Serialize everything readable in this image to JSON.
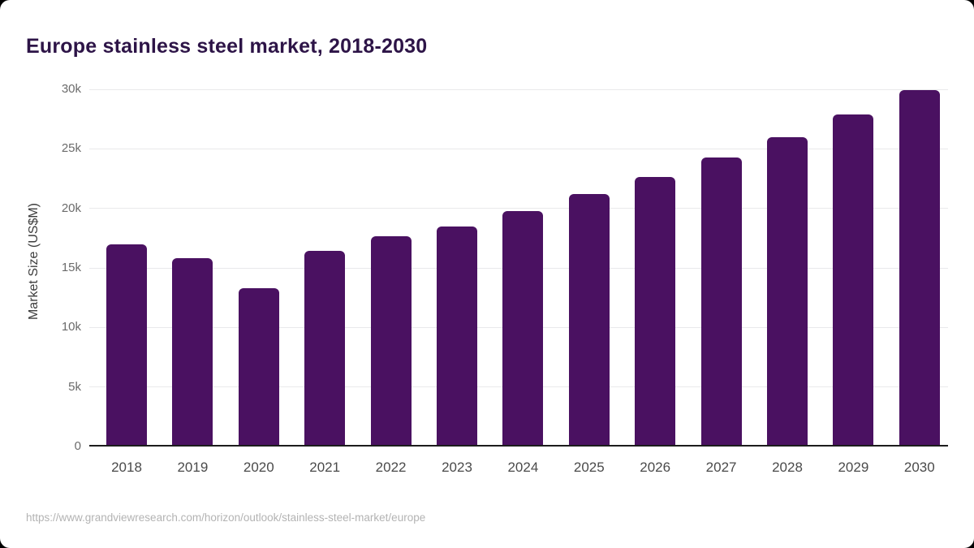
{
  "title": "Europe stainless steel market, 2018-2030",
  "source_url": "https://www.grandviewresearch.com/horizon/outlook/stainless-steel-market/europe",
  "colors": {
    "bar": "#4a1161",
    "title": "#2d1447",
    "gridline": "#e9e9eb",
    "axis_line": "#1c1c1c",
    "background": "#ffffff"
  },
  "chart_data": {
    "type": "bar",
    "title": "Europe stainless steel market, 2018-2030",
    "categories": [
      "2018",
      "2019",
      "2020",
      "2021",
      "2022",
      "2023",
      "2024",
      "2025",
      "2026",
      "2027",
      "2028",
      "2029",
      "2030"
    ],
    "values": [
      17000,
      15800,
      13300,
      16400,
      17650,
      18500,
      19800,
      21200,
      22650,
      24250,
      26000,
      27900,
      29950
    ],
    "xlabel": "",
    "ylabel": "Market Size (US$M)",
    "ylim": [
      0,
      30000
    ],
    "ytick_interval": 5000,
    "ytick_labels": [
      "0",
      "5k",
      "10k",
      "15k",
      "20k",
      "25k",
      "30k"
    ],
    "grid": true,
    "legend_position": "none",
    "bar_color": "#4a1161"
  }
}
